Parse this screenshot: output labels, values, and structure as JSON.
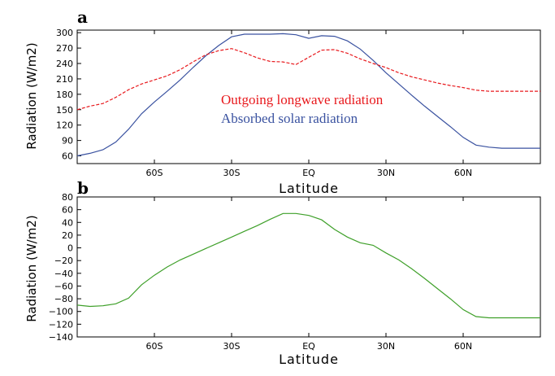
{
  "chart_data": [
    {
      "type": "line",
      "panel_label": "a",
      "xlabel": "Latitude",
      "ylabel": "Radiation (W/m2)",
      "xlim": [
        -90,
        90
      ],
      "ylim": [
        45,
        305
      ],
      "x_ticks": [
        -60,
        -30,
        0,
        30,
        60
      ],
      "x_tick_labels": [
        "60S",
        "30S",
        "EQ",
        "30N",
        "60N"
      ],
      "y_ticks": [
        60,
        90,
        120,
        150,
        180,
        210,
        240,
        270,
        300
      ],
      "y_tick_labels": [
        "60",
        "90",
        "120",
        "150",
        "180",
        "210",
        "240",
        "270",
        "300"
      ],
      "grid": false,
      "series": [
        {
          "name": "Absorbed solar radiation",
          "color": "#3a52a0",
          "style": "solid",
          "x": [
            -90,
            -85,
            -80,
            -75,
            -70,
            -65,
            -60,
            -55,
            -50,
            -45,
            -40,
            -35,
            -30,
            -25,
            -20,
            -15,
            -10,
            -5,
            0,
            5,
            10,
            15,
            20,
            25,
            30,
            35,
            40,
            45,
            50,
            55,
            60,
            65,
            70,
            75,
            80,
            85,
            90
          ],
          "values": [
            60,
            65,
            72,
            87,
            112,
            142,
            165,
            186,
            208,
            232,
            255,
            275,
            292,
            297,
            297,
            297,
            298,
            296,
            289,
            294,
            293,
            284,
            268,
            246,
            222,
            200,
            178,
            157,
            137,
            117,
            96,
            81,
            77,
            75,
            75,
            75,
            75
          ]
        },
        {
          "name": "Outgoing longwave radiation",
          "color": "#e8191d",
          "style": "dashed",
          "x": [
            -90,
            -85,
            -80,
            -75,
            -70,
            -65,
            -60,
            -55,
            -50,
            -45,
            -40,
            -35,
            -30,
            -25,
            -20,
            -15,
            -10,
            -5,
            0,
            5,
            10,
            15,
            20,
            25,
            30,
            35,
            40,
            45,
            50,
            55,
            60,
            65,
            70,
            75,
            80,
            85,
            90
          ],
          "values": [
            150,
            157,
            162,
            174,
            189,
            200,
            208,
            216,
            228,
            243,
            257,
            265,
            269,
            261,
            251,
            244,
            243,
            238,
            252,
            266,
            267,
            260,
            249,
            240,
            232,
            222,
            214,
            208,
            202,
            197,
            193,
            188,
            186,
            186,
            186,
            186,
            186
          ]
        }
      ]
    },
    {
      "type": "line",
      "panel_label": "b",
      "xlabel": "Latitude",
      "ylabel": "Radiation (W/m2)",
      "xlim": [
        -90,
        90
      ],
      "ylim": [
        -140,
        80
      ],
      "x_ticks": [
        -60,
        -30,
        0,
        30,
        60
      ],
      "x_tick_labels": [
        "60S",
        "30S",
        "EQ",
        "30N",
        "60N"
      ],
      "y_ticks": [
        -140,
        -120,
        -100,
        -80,
        -60,
        -40,
        -20,
        0,
        20,
        40,
        60,
        80
      ],
      "y_tick_labels": [
        "−140",
        "−120",
        "−100",
        "−80",
        "−60",
        "−40",
        "−20",
        "0",
        "20",
        "40",
        "60",
        "80"
      ],
      "grid": false,
      "series": [
        {
          "color": "#3fa02a",
          "style": "solid",
          "x": [
            -90,
            -85,
            -80,
            -75,
            -70,
            -65,
            -60,
            -55,
            -50,
            -45,
            -40,
            -35,
            -30,
            -25,
            -20,
            -15,
            -10,
            -5,
            0,
            5,
            10,
            15,
            20,
            25,
            30,
            35,
            40,
            45,
            50,
            55,
            60,
            65,
            70,
            75,
            80,
            85,
            90
          ],
          "values": [
            -90,
            -92,
            -91,
            -88,
            -79,
            -58,
            -43,
            -30,
            -19,
            -10,
            -1,
            8,
            17,
            26,
            35,
            45,
            54,
            54,
            51,
            44,
            29,
            17,
            8,
            4,
            -8,
            -19,
            -33,
            -48,
            -64,
            -80,
            -97,
            -108,
            -110,
            -110,
            -110,
            -110,
            -110
          ]
        }
      ]
    }
  ]
}
